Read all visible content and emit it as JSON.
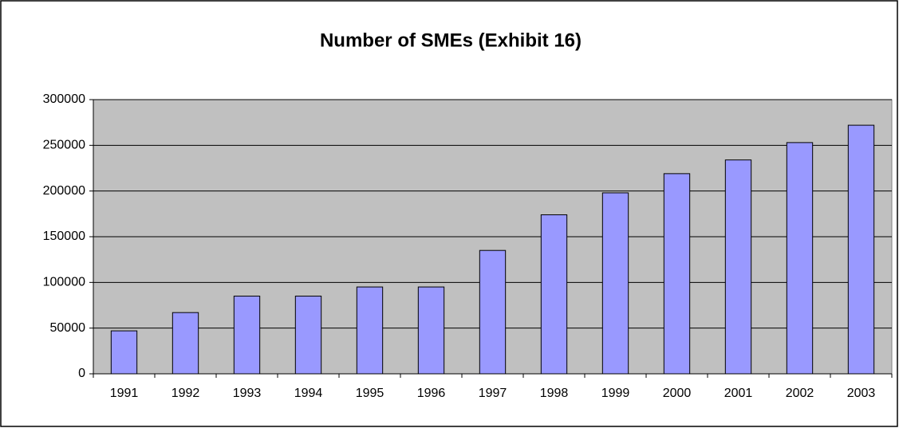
{
  "chart_data": {
    "type": "bar",
    "title": "Number of SMEs (Exhibit 16)",
    "categories": [
      "1991",
      "1992",
      "1993",
      "1994",
      "1995",
      "1996",
      "1997",
      "1998",
      "1999",
      "2000",
      "2001",
      "2002",
      "2003"
    ],
    "values": [
      47000,
      67000,
      85000,
      85000,
      95000,
      95000,
      135000,
      174000,
      198000,
      219000,
      234000,
      253000,
      272000
    ],
    "color": "#9999ff",
    "ylim": [
      0,
      300000
    ],
    "yticks": [
      0,
      50000,
      100000,
      150000,
      200000,
      250000,
      300000
    ],
    "grid": true
  }
}
